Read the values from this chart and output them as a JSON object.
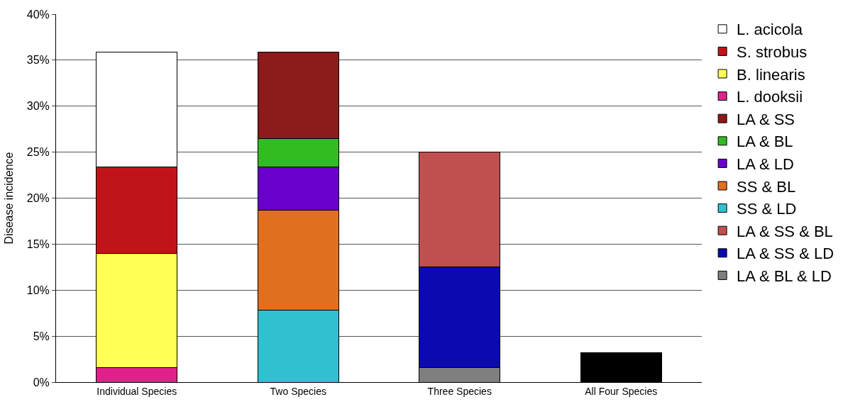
{
  "chart_data": {
    "type": "bar",
    "stacked": true,
    "ylabel": "Disease incidence",
    "categories": [
      "Individual Species",
      "Two Species",
      "Three Species",
      "All Four Species"
    ],
    "series": [
      {
        "color": "#000000",
        "values": [
          null,
          null,
          null,
          3.2
        ]
      },
      {
        "name": "LA & BL & LD",
        "color": "#7f7f7f",
        "values": [
          null,
          null,
          1.6,
          null
        ]
      },
      {
        "name": "LA & SS & LD",
        "color": "#0a0ab0",
        "values": [
          null,
          null,
          10.9,
          null
        ]
      },
      {
        "name": "LA & SS & BL",
        "color": "#c05050",
        "values": [
          null,
          null,
          12.5,
          null
        ]
      },
      {
        "name": "SS & LD",
        "color": "#30c0d0",
        "values": [
          null,
          7.8,
          null,
          null
        ]
      },
      {
        "name": "SS & BL",
        "color": "#e07020",
        "values": [
          null,
          10.9,
          null,
          null
        ]
      },
      {
        "name": "LA & LD",
        "color": "#6a00cc",
        "values": [
          null,
          4.7,
          null,
          null
        ]
      },
      {
        "name": "LA & BL",
        "color": "#33bb22",
        "values": [
          null,
          3.1,
          null,
          null
        ]
      },
      {
        "name": "LA & SS",
        "color": "#8b1a1a",
        "values": [
          null,
          9.4,
          null,
          null
        ]
      },
      {
        "name": "L. dooksii",
        "color": "#e0218a",
        "values": [
          1.6,
          null,
          null,
          null
        ]
      },
      {
        "name": "B. linearis",
        "color": "#ffff55",
        "values": [
          12.4,
          null,
          null,
          null
        ]
      },
      {
        "name": "S. strobus",
        "color": "#c0141a",
        "values": [
          9.4,
          null,
          null,
          null
        ]
      },
      {
        "name": "L. acicola",
        "color": "#ffffff",
        "values": [
          12.5,
          null,
          null,
          null
        ]
      }
    ],
    "ylim": [
      0,
      40
    ],
    "yticks": [
      {
        "value": 0,
        "label": "0%"
      },
      {
        "value": 5,
        "label": "5%"
      },
      {
        "value": 10,
        "label": "10%"
      },
      {
        "value": 15,
        "label": "15%"
      },
      {
        "value": 20,
        "label": "20%"
      },
      {
        "value": 25,
        "label": "25%"
      },
      {
        "value": 30,
        "label": "30%"
      },
      {
        "value": 35,
        "label": "35%"
      },
      {
        "value": 40,
        "label": "40%"
      }
    ],
    "grid": "y",
    "legend": "right"
  }
}
